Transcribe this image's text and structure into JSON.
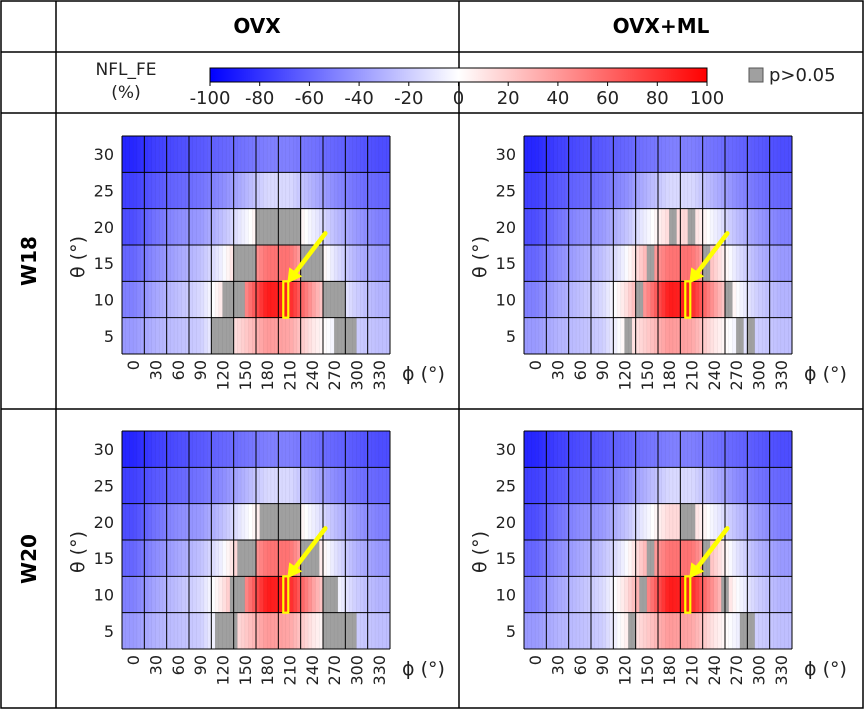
{
  "columns": [
    "OVX",
    "OVX+ML"
  ],
  "rows": [
    "W18",
    "W20"
  ],
  "colorbar": {
    "label_line1": "NFL_FE",
    "label_line2": "(%)",
    "ticks": [
      "-100",
      "-80",
      "-60",
      "-40",
      "-20",
      "0",
      "20",
      "40",
      "60",
      "80",
      "100"
    ],
    "min": -100,
    "max": 100,
    "low_color": "#0000ff",
    "mid_color": "#ffffff",
    "high_color": "#ff0000",
    "ns_color": "#a0a0a0",
    "ns_label": "p>0.05"
  },
  "highlight": {
    "color": "#ffff00",
    "arrow_color": "#ffff00"
  },
  "chart_data": [
    {
      "type": "heatmap",
      "column": "OVX",
      "row": "W18",
      "x_ticks": [
        "0",
        "30",
        "60",
        "90",
        "120",
        "150",
        "180",
        "210",
        "240",
        "270",
        "300",
        "330"
      ],
      "y_ticks": [
        "30",
        "25",
        "20",
        "15",
        "10",
        "5"
      ],
      "xlabel": "ϕ (°)",
      "ylabel": "θ (°)",
      "theta_rows": [
        30,
        25,
        20,
        15,
        10,
        5
      ],
      "phi_centers": [
        0,
        30,
        60,
        90,
        120,
        150,
        180,
        210,
        240,
        270,
        300,
        330
      ],
      "band_values": [
        [
          -85,
          -75,
          -70,
          -65,
          -60,
          -55,
          -50,
          -50,
          -55,
          -60,
          -65,
          -70
        ],
        [
          -75,
          -65,
          -60,
          -55,
          -45,
          -30,
          -15,
          -15,
          -30,
          -45,
          -55,
          -60
        ],
        [
          -70,
          -55,
          -45,
          -40,
          -25,
          -5,
          15,
          15,
          -5,
          -25,
          -40,
          -50
        ],
        [
          -60,
          -45,
          -35,
          -25,
          -5,
          30,
          55,
          55,
          20,
          -10,
          -30,
          -40
        ],
        [
          -50,
          -35,
          -25,
          -15,
          10,
          45,
          90,
          85,
          40,
          0,
          -20,
          -30
        ],
        [
          -40,
          -30,
          -25,
          -20,
          5,
          20,
          40,
          35,
          10,
          -5,
          -20,
          -25
        ]
      ],
      "ns_phi_ranges": [
        [
          null
        ],
        [
          null
        ],
        [
          [
            165,
            225
          ]
        ],
        [
          [
            135,
            165
          ],
          [
            225,
            255
          ]
        ],
        [
          [
            120,
            150
          ],
          [
            255,
            285
          ]
        ],
        [
          [
            105,
            135
          ],
          [
            270,
            300
          ]
        ]
      ],
      "highlight_phi": 205,
      "highlight_theta": 10
    },
    {
      "type": "heatmap",
      "column": "OVX+ML",
      "row": "W18",
      "x_ticks": [
        "0",
        "30",
        "60",
        "90",
        "120",
        "150",
        "180",
        "210",
        "240",
        "270",
        "300",
        "330"
      ],
      "y_ticks": [
        "30",
        "25",
        "20",
        "15",
        "10",
        "5"
      ],
      "xlabel": "ϕ (°)",
      "ylabel": "θ (°)",
      "theta_rows": [
        30,
        25,
        20,
        15,
        10,
        5
      ],
      "phi_centers": [
        0,
        30,
        60,
        90,
        120,
        150,
        180,
        210,
        240,
        270,
        300,
        330
      ],
      "band_values": [
        [
          -85,
          -75,
          -70,
          -65,
          -60,
          -55,
          -50,
          -50,
          -55,
          -60,
          -65,
          -70
        ],
        [
          -75,
          -65,
          -60,
          -55,
          -45,
          -30,
          -15,
          -15,
          -30,
          -45,
          -55,
          -60
        ],
        [
          -70,
          -55,
          -45,
          -40,
          -25,
          -5,
          15,
          15,
          -5,
          -25,
          -40,
          -50
        ],
        [
          -60,
          -45,
          -35,
          -25,
          -5,
          30,
          55,
          55,
          20,
          -10,
          -30,
          -40
        ],
        [
          -50,
          -35,
          -25,
          -15,
          10,
          45,
          90,
          85,
          40,
          0,
          -20,
          -30
        ],
        [
          -40,
          -30,
          -25,
          -20,
          5,
          20,
          40,
          35,
          10,
          -5,
          -20,
          -25
        ]
      ],
      "ns_phi_ranges": [
        [
          null
        ],
        [
          null
        ],
        [
          [
            180,
            190
          ],
          [
            205,
            215
          ]
        ],
        [
          [
            150,
            160
          ],
          [
            225,
            235
          ]
        ],
        [
          [
            135,
            145
          ],
          [
            255,
            265
          ]
        ],
        [
          [
            120,
            130
          ],
          [
            270,
            280
          ],
          [
            285,
            295
          ]
        ]
      ],
      "highlight_phi": 205,
      "highlight_theta": 10
    },
    {
      "type": "heatmap",
      "column": "OVX",
      "row": "W20",
      "x_ticks": [
        "0",
        "30",
        "60",
        "90",
        "120",
        "150",
        "180",
        "210",
        "240",
        "270",
        "300",
        "330"
      ],
      "y_ticks": [
        "30",
        "25",
        "20",
        "15",
        "10",
        "5"
      ],
      "xlabel": "ϕ (°)",
      "ylabel": "θ (°)",
      "theta_rows": [
        30,
        25,
        20,
        15,
        10,
        5
      ],
      "phi_centers": [
        0,
        30,
        60,
        90,
        120,
        150,
        180,
        210,
        240,
        270,
        300,
        330
      ],
      "band_values": [
        [
          -85,
          -75,
          -70,
          -65,
          -60,
          -55,
          -50,
          -50,
          -55,
          -60,
          -65,
          -70
        ],
        [
          -75,
          -65,
          -60,
          -55,
          -45,
          -30,
          -15,
          -15,
          -30,
          -45,
          -55,
          -60
        ],
        [
          -70,
          -55,
          -45,
          -40,
          -25,
          -5,
          15,
          15,
          -5,
          -25,
          -40,
          -50
        ],
        [
          -60,
          -45,
          -35,
          -25,
          -5,
          30,
          55,
          55,
          20,
          -10,
          -30,
          -40
        ],
        [
          -50,
          -35,
          -25,
          -15,
          10,
          45,
          90,
          85,
          40,
          0,
          -20,
          -30
        ],
        [
          -40,
          -30,
          -25,
          -20,
          5,
          20,
          40,
          35,
          10,
          -5,
          -20,
          -25
        ]
      ],
      "ns_phi_ranges": [
        [
          null
        ],
        [
          null
        ],
        [
          [
            170,
            225
          ]
        ],
        [
          [
            140,
            165
          ],
          [
            225,
            250
          ]
        ],
        [
          [
            130,
            150
          ],
          [
            255,
            275
          ]
        ],
        [
          [
            110,
            140
          ],
          [
            255,
            300
          ]
        ]
      ],
      "highlight_phi": 205,
      "highlight_theta": 10
    },
    {
      "type": "heatmap",
      "column": "OVX+ML",
      "row": "W20",
      "x_ticks": [
        "0",
        "30",
        "60",
        "90",
        "120",
        "150",
        "180",
        "210",
        "240",
        "270",
        "300",
        "330"
      ],
      "y_ticks": [
        "30",
        "25",
        "20",
        "15",
        "10",
        "5"
      ],
      "xlabel": "ϕ (°)",
      "ylabel": "θ (°)",
      "theta_rows": [
        30,
        25,
        20,
        15,
        10,
        5
      ],
      "phi_centers": [
        0,
        30,
        60,
        90,
        120,
        150,
        180,
        210,
        240,
        270,
        300,
        330
      ],
      "band_values": [
        [
          -85,
          -75,
          -70,
          -65,
          -60,
          -55,
          -50,
          -50,
          -55,
          -60,
          -65,
          -70
        ],
        [
          -75,
          -65,
          -60,
          -55,
          -45,
          -30,
          -15,
          -15,
          -30,
          -45,
          -55,
          -60
        ],
        [
          -70,
          -55,
          -45,
          -40,
          -25,
          -5,
          15,
          15,
          -5,
          -25,
          -40,
          -50
        ],
        [
          -60,
          -45,
          -35,
          -25,
          -5,
          30,
          55,
          55,
          20,
          -10,
          -30,
          -40
        ],
        [
          -50,
          -35,
          -25,
          -15,
          10,
          45,
          90,
          85,
          40,
          0,
          -20,
          -30
        ],
        [
          -40,
          -30,
          -25,
          -20,
          5,
          20,
          40,
          35,
          10,
          -5,
          -20,
          -25
        ]
      ],
      "ns_phi_ranges": [
        [
          null
        ],
        [
          null
        ],
        [
          [
            195,
            215
          ]
        ],
        [
          [
            150,
            160
          ],
          [
            225,
            235
          ]
        ],
        [
          [
            140,
            150
          ],
          [
            250,
            260
          ]
        ],
        [
          [
            125,
            135
          ],
          [
            275,
            285
          ],
          [
            285,
            295
          ]
        ]
      ],
      "highlight_phi": 205,
      "highlight_theta": 10
    }
  ]
}
